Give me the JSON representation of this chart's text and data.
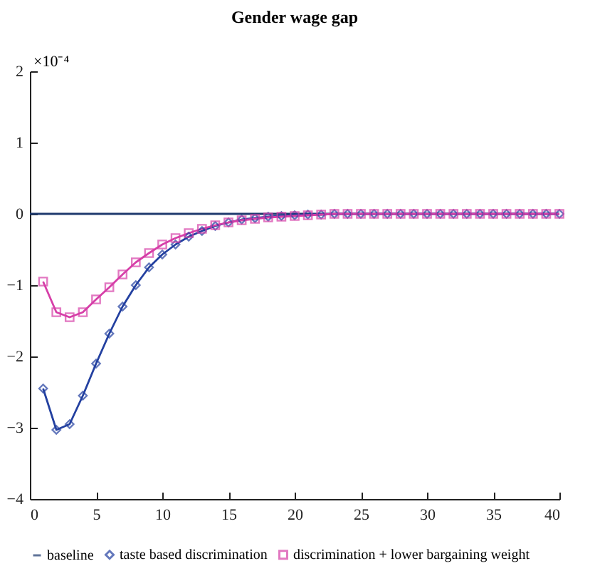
{
  "chart_data": {
    "type": "line",
    "title": "Gender wage gap",
    "ylabel": "×10⁻⁴",
    "xlim": [
      0,
      40
    ],
    "xticks": [
      0,
      5,
      10,
      15,
      20,
      25,
      30,
      35,
      40
    ],
    "ylim": [
      -4,
      2
    ],
    "yticks": [
      -4,
      -3,
      -2,
      -1,
      0,
      1,
      2
    ],
    "grid": false,
    "legend": "bottom",
    "line_style": "solid",
    "series": [
      {
        "name": "baseline",
        "color": "#1f3a6e",
        "marker": "none",
        "x": [
          0,
          40
        ],
        "values": [
          0,
          0
        ]
      },
      {
        "name": "taste based discrimination",
        "color": "#2340a0",
        "marker": "diamond",
        "x": [
          1,
          2,
          3,
          4,
          5,
          6,
          7,
          8,
          9,
          10,
          11,
          12,
          13,
          14,
          15,
          16,
          17,
          18,
          19,
          20,
          21,
          22,
          23,
          24,
          25,
          26,
          27,
          28,
          29,
          30,
          31,
          32,
          33,
          34,
          35,
          36,
          37,
          38,
          39,
          40
        ],
        "values": [
          -2.45,
          -3.03,
          -2.95,
          -2.55,
          -2.1,
          -1.68,
          -1.3,
          -1.0,
          -0.75,
          -0.57,
          -0.43,
          -0.32,
          -0.24,
          -0.17,
          -0.12,
          -0.08,
          -0.06,
          -0.04,
          -0.03,
          -0.02,
          -0.01,
          -0.01,
          0,
          0,
          0,
          0,
          0,
          0,
          0,
          0,
          0,
          0,
          0,
          0,
          0,
          0,
          0,
          0,
          0,
          0
        ]
      },
      {
        "name": "discrimination + lower bargaining weight",
        "color": "#d63fa8",
        "marker": "square",
        "x": [
          1,
          2,
          3,
          4,
          5,
          6,
          7,
          8,
          9,
          10,
          11,
          12,
          13,
          14,
          15,
          16,
          17,
          18,
          19,
          20,
          21,
          22,
          23,
          24,
          25,
          26,
          27,
          28,
          29,
          30,
          31,
          32,
          33,
          34,
          35,
          36,
          37,
          38,
          39,
          40
        ],
        "values": [
          -0.95,
          -1.38,
          -1.45,
          -1.38,
          -1.2,
          -1.03,
          -0.85,
          -0.68,
          -0.55,
          -0.43,
          -0.34,
          -0.27,
          -0.21,
          -0.16,
          -0.12,
          -0.09,
          -0.07,
          -0.05,
          -0.04,
          -0.03,
          -0.02,
          -0.01,
          0,
          0,
          0,
          0,
          0,
          0,
          0,
          0,
          0,
          0,
          0,
          0,
          0,
          0,
          0,
          0,
          0,
          0
        ]
      }
    ]
  }
}
